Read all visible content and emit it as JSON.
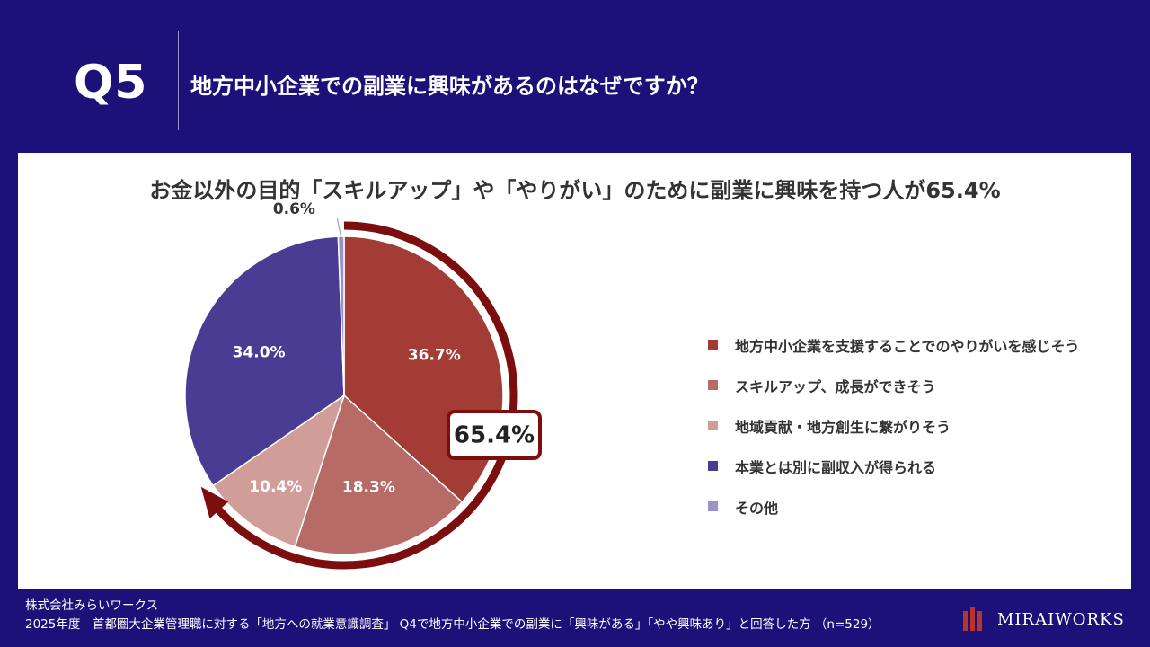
{
  "header": {
    "question_number": "Q5",
    "question_title": "地方中小企業での副業に興味があるのはなぜですか？"
  },
  "chart_data": {
    "type": "pie",
    "title": "お金以外の目的「スキルアップ」や「やりがい」のために副業に興味を持つ人が65.4%",
    "slices": [
      {
        "label": "地方中小企業を支援することでのやりがいを感じそう",
        "value": 36.7,
        "value_label": "36.7%",
        "color": "#a23c35"
      },
      {
        "label": "スキルアップ、成長ができそう",
        "value": 18.3,
        "value_label": "18.3%",
        "color": "#b76b66"
      },
      {
        "label": "地域貢献・地方創生に繋がりそう",
        "value": 10.4,
        "value_label": "10.4%",
        "color": "#d19d98"
      },
      {
        "label": "本業とは別に副収入が得られる",
        "value": 34.0,
        "value_label": "34.0%",
        "color": "#4a3b93"
      },
      {
        "label": "その他",
        "value": 0.6,
        "value_label": "0.6%",
        "color": "#9a92c9"
      }
    ],
    "callout": {
      "value": 65.4,
      "label": "65.4%",
      "color": "#7d0e0e"
    },
    "legend_position": "right"
  },
  "footer": {
    "company": "株式会社みらいワークス",
    "source": "2025年度　首都圏大企業管理職に対する「地方への就業意識調査」 Q4で地方中小企業での副業に「興味がある」「やや興味あり」と回答した方 （n=529）"
  },
  "logo": {
    "name": "MIRAIWORKS",
    "color": "#b8342c"
  }
}
